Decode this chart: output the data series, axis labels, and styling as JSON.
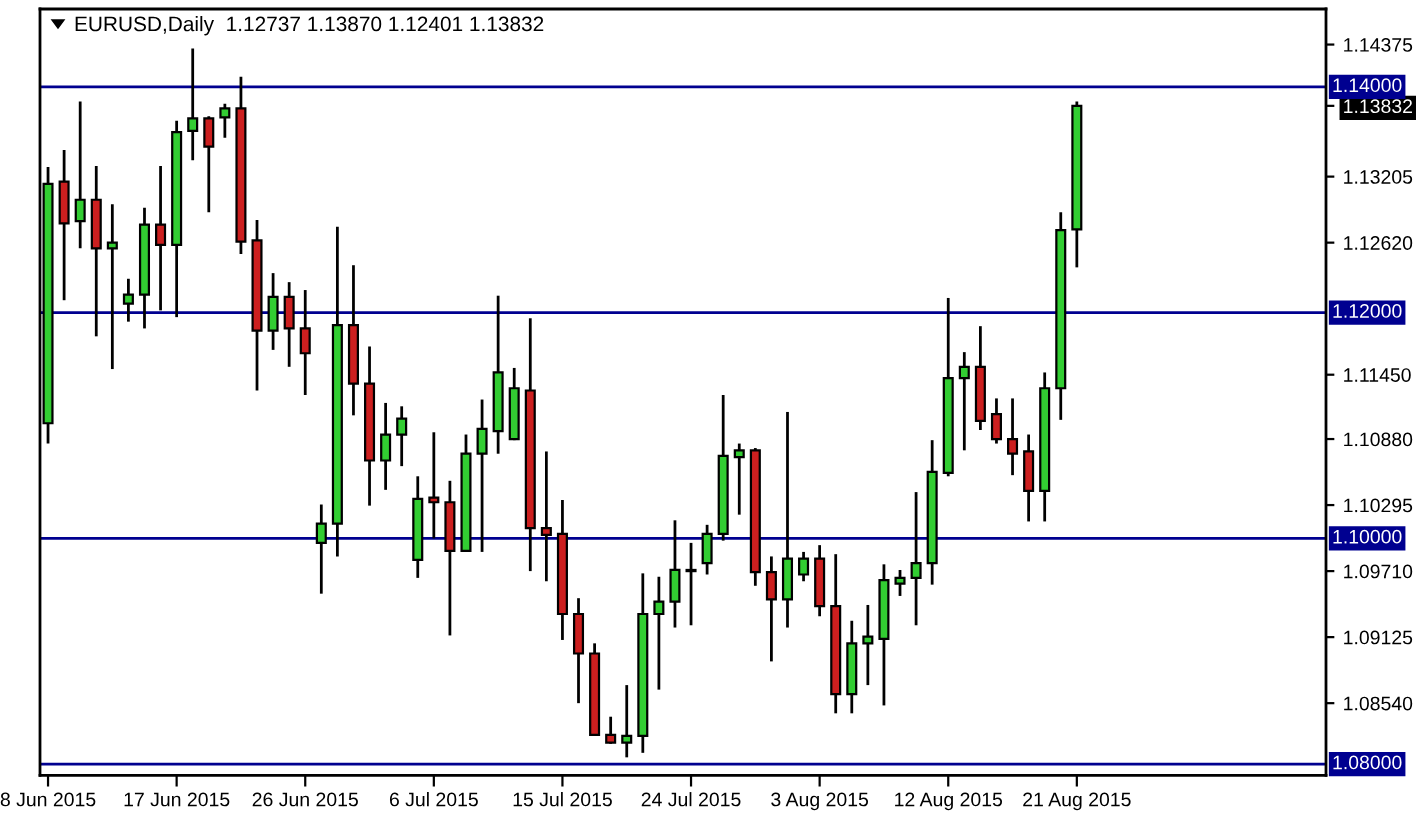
{
  "chart_data": {
    "type": "candlestick",
    "title": "EURUSD,Daily  1.12737 1.13870 1.12401 1.13832",
    "categories": [
      "8 Jun 2015",
      null,
      null,
      null,
      null,
      null,
      null,
      null,
      "17 Jun 2015",
      null,
      null,
      null,
      null,
      null,
      null,
      null,
      "26 Jun 2015",
      null,
      null,
      null,
      null,
      null,
      null,
      null,
      "6 Jul 2015",
      null,
      null,
      null,
      null,
      null,
      null,
      null,
      "15 Jul 2015",
      null,
      null,
      null,
      null,
      null,
      null,
      null,
      "24 Jul 2015",
      null,
      null,
      null,
      null,
      null,
      null,
      null,
      "3 Aug 2015",
      null,
      null,
      null,
      null,
      null,
      null,
      null,
      "12 Aug 2015",
      null,
      null,
      null,
      null,
      null,
      null,
      null,
      "21 Aug 2015",
      null,
      null,
      null,
      null,
      null,
      null,
      null,
      null,
      null,
      null,
      null,
      null,
      null,
      null,
      null
    ],
    "ohlc": [
      [
        1.1102,
        1.1329,
        1.1084,
        1.1314
      ],
      [
        1.1316,
        1.1344,
        1.1211,
        1.1279
      ],
      [
        1.1281,
        1.1387,
        1.1257,
        1.13
      ],
      [
        1.13,
        1.133,
        1.1179,
        1.1257
      ],
      [
        1.1257,
        1.1296,
        1.115,
        1.1262
      ],
      [
        1.1208,
        1.123,
        1.1192,
        1.1216
      ],
      [
        1.1216,
        1.1293,
        1.1186,
        1.1278
      ],
      [
        1.1278,
        1.133,
        1.1202,
        1.126
      ],
      [
        1.126,
        1.137,
        1.1196,
        1.136
      ],
      [
        1.1361,
        1.1434,
        1.1335,
        1.1372
      ],
      [
        1.1372,
        1.1374,
        1.1289,
        1.1347
      ],
      [
        1.1373,
        1.1385,
        1.1355,
        1.1381
      ],
      [
        1.1381,
        1.1409,
        1.1252,
        1.1263
      ],
      [
        1.1264,
        1.1282,
        1.1131,
        1.1184
      ],
      [
        1.1184,
        1.1235,
        1.1167,
        1.1214
      ],
      [
        1.1214,
        1.1227,
        1.1152,
        1.1186
      ],
      [
        1.1186,
        1.122,
        1.1127,
        1.1164
      ],
      [
        1.0996,
        1.103,
        1.0951,
        1.1013
      ],
      [
        1.1013,
        1.1276,
        1.0984,
        1.1189
      ],
      [
        1.1189,
        1.1242,
        1.1109,
        1.1137
      ],
      [
        1.1137,
        1.117,
        1.1029,
        1.1069
      ],
      [
        1.1069,
        1.112,
        1.1043,
        1.1092
      ],
      [
        1.1092,
        1.1117,
        1.1064,
        1.1106
      ],
      [
        1.0981,
        1.1055,
        1.0965,
        1.1035
      ],
      [
        1.1036,
        1.1094,
        1.1,
        1.1032
      ],
      [
        1.1032,
        1.1051,
        1.0914,
        1.0989
      ],
      [
        1.0989,
        1.1092,
        1.0988,
        1.1075
      ],
      [
        1.1075,
        1.1123,
        1.0988,
        1.1097
      ],
      [
        1.1095,
        1.1215,
        1.1075,
        1.1147
      ],
      [
        1.1088,
        1.1151,
        1.1087,
        1.1133
      ],
      [
        1.1131,
        1.1195,
        1.0971,
        1.1009
      ],
      [
        1.1009,
        1.1077,
        1.0962,
        1.1003
      ],
      [
        1.1004,
        1.1034,
        1.091,
        1.0933
      ],
      [
        1.0933,
        1.0947,
        1.0854,
        1.0898
      ],
      [
        1.0898,
        1.0907,
        1.0825,
        1.0826
      ],
      [
        1.0826,
        1.0842,
        1.0818,
        1.0819
      ],
      [
        1.0819,
        1.087,
        1.0806,
        1.0825
      ],
      [
        1.0825,
        1.0969,
        1.081,
        1.0933
      ],
      [
        1.0933,
        1.0966,
        1.0866,
        1.0944
      ],
      [
        1.0944,
        1.1016,
        1.0921,
        1.0972
      ],
      [
        1.0972,
        1.0996,
        1.0923,
        1.0971
      ],
      [
        1.0978,
        1.1012,
        1.0968,
        1.1004
      ],
      [
        1.1004,
        1.1127,
        1.0998,
        1.1073
      ],
      [
        1.1072,
        1.1084,
        1.1021,
        1.1078
      ],
      [
        1.1078,
        1.108,
        1.0958,
        1.097
      ],
      [
        1.097,
        1.0984,
        1.0891,
        1.0946
      ],
      [
        1.0946,
        1.1112,
        1.0921,
        1.0982
      ],
      [
        1.0968,
        1.0988,
        1.0962,
        1.0982
      ],
      [
        1.0982,
        1.0994,
        1.0931,
        1.094
      ],
      [
        1.094,
        1.0986,
        1.0845,
        1.0862
      ],
      [
        1.0862,
        1.0927,
        1.0845,
        1.0907
      ],
      [
        1.0907,
        1.0941,
        1.087,
        1.0913
      ],
      [
        1.0911,
        1.0977,
        1.0852,
        1.0963
      ],
      [
        1.096,
        1.0972,
        1.0949,
        1.0965
      ],
      [
        1.0965,
        1.1041,
        1.0923,
        1.0978
      ],
      [
        1.0978,
        1.1087,
        1.0959,
        1.1059
      ],
      [
        1.1058,
        1.1213,
        1.1055,
        1.1142
      ],
      [
        1.1142,
        1.1165,
        1.1078,
        1.1152
      ],
      [
        1.1152,
        1.1188,
        1.1096,
        1.1104
      ],
      [
        1.111,
        1.1124,
        1.1084,
        1.1088
      ],
      [
        1.1088,
        1.1124,
        1.1056,
        1.1075
      ],
      [
        1.1077,
        1.1092,
        1.1015,
        1.1042
      ],
      [
        1.1042,
        1.1147,
        1.1015,
        1.1133
      ],
      [
        1.1133,
        1.1289,
        1.1105,
        1.1273
      ],
      [
        1.12737,
        1.1387,
        1.12401,
        1.13832
      ],
      null,
      null,
      null,
      null,
      null,
      null,
      null,
      null,
      null,
      null,
      null,
      null,
      null,
      null,
      null
    ],
    "colors": [
      "#32cd32",
      "#cc1f1f",
      "#32cd32",
      "#cc1f1f",
      "#32cd32",
      "#32cd32",
      "#32cd32",
      "#cc1f1f",
      "#32cd32",
      "#32cd32",
      "#cc1f1f",
      "#32cd32",
      "#cc1f1f",
      "#cc1f1f",
      "#32cd32",
      "#cc1f1f",
      "#cc1f1f",
      "#32cd32",
      "#32cd32",
      "#cc1f1f",
      "#cc1f1f",
      "#32cd32",
      "#32cd32",
      "#32cd32",
      "#cc1f1f",
      "#cc1f1f",
      "#32cd32",
      "#32cd32",
      "#32cd32",
      "#32cd32",
      "#cc1f1f",
      "#cc1f1f",
      "#cc1f1f",
      "#cc1f1f",
      "#cc1f1f",
      "#cc1f1f",
      "#32cd32",
      "#32cd32",
      "#32cd32",
      "#32cd32",
      "#cc1f1f",
      "#32cd32",
      "#32cd32",
      "#32cd32",
      "#cc1f1f",
      "#cc1f1f",
      "#32cd32",
      "#32cd32",
      "#cc1f1f",
      "#cc1f1f",
      "#32cd32",
      "#32cd32",
      "#32cd32",
      "#32cd32",
      "#32cd32",
      "#32cd32",
      "#32cd32",
      "#32cd32",
      "#cc1f1f",
      "#cc1f1f",
      "#cc1f1f",
      "#cc1f1f",
      "#32cd32",
      "#32cd32",
      "#32cd32",
      null,
      null,
      null,
      null,
      null,
      null,
      null,
      null,
      null,
      null,
      null,
      null,
      null,
      null,
      null
    ],
    "ylim": [
      1.079,
      1.1469
    ],
    "yticks": [
      1.14375,
      1.13832,
      1.13205,
      {
        "value": 1.1262,
        "label": "1.12620"
      },
      {
        "value": 1.1145,
        "label": "1.11450"
      },
      {
        "value": 1.1088,
        "label": "1.10880"
      },
      1.10295,
      {
        "value": 1.0971,
        "label": "1.09710"
      },
      1.09125,
      {
        "value": 1.0854,
        "label": "1.08540"
      }
    ],
    "ref_lines": [
      {
        "axis": "y",
        "value": 1.14,
        "label": "1.14000",
        "color": "#000090"
      },
      {
        "axis": "y",
        "value": 1.12,
        "label": "1.12000",
        "color": "#000090"
      },
      {
        "axis": "y",
        "value": 1.1,
        "label": "1.10000",
        "color": "#000090"
      },
      {
        "axis": "y",
        "value": 1.08,
        "label": "1.08000",
        "color": "#000090"
      }
    ]
  }
}
